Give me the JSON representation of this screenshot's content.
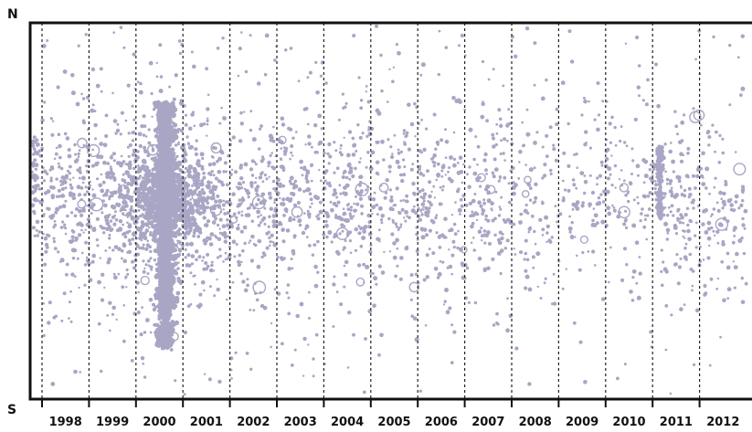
{
  "chart_data": {
    "type": "scatter",
    "title": "",
    "xlabel": "",
    "ylabel": "",
    "y_axis_top_label": "N",
    "y_axis_bottom_label": "S",
    "x_tick_labels": [
      "1998",
      "1999",
      "2000",
      "2001",
      "2002",
      "2003",
      "2004",
      "2005",
      "2006",
      "2007",
      "2008",
      "2009",
      "2010",
      "2011",
      "2012"
    ],
    "xlim": [
      1997.75,
      2012.95
    ],
    "ylim": [
      "S",
      "N"
    ],
    "grid": "vertical dashed lines at year boundaries",
    "legend": "none",
    "marker_color": "#a8a6c4",
    "frame_color": "#111111",
    "gridline_color": "#222222",
    "activity_profile": [
      {
        "year": "1998",
        "relative_density": 0.55,
        "peak_band": "equator"
      },
      {
        "year": "1999",
        "relative_density": 0.65,
        "peak_band": "equator"
      },
      {
        "year": "2000",
        "relative_density": 1.0,
        "peak_band": "equator, full latitude range"
      },
      {
        "year": "2001",
        "relative_density": 0.75,
        "peak_band": "equator"
      },
      {
        "year": "2002",
        "relative_density": 0.55,
        "peak_band": "equator"
      },
      {
        "year": "2003",
        "relative_density": 0.45,
        "peak_band": "equator"
      },
      {
        "year": "2004",
        "relative_density": 0.5,
        "peak_band": "equator"
      },
      {
        "year": "2005",
        "relative_density": 0.35,
        "peak_band": "equator"
      },
      {
        "year": "2006",
        "relative_density": 0.4,
        "peak_band": "equator"
      },
      {
        "year": "2007",
        "relative_density": 0.35,
        "peak_band": "equator"
      },
      {
        "year": "2008",
        "relative_density": 0.2,
        "peak_band": "equator"
      },
      {
        "year": "2009",
        "relative_density": 0.15,
        "peak_band": "equator"
      },
      {
        "year": "2010",
        "relative_density": 0.2,
        "peak_band": "equator"
      },
      {
        "year": "2011",
        "relative_density": 0.35,
        "peak_band": "equator"
      },
      {
        "year": "2012",
        "relative_density": 0.25,
        "peak_band": "equator"
      }
    ]
  }
}
